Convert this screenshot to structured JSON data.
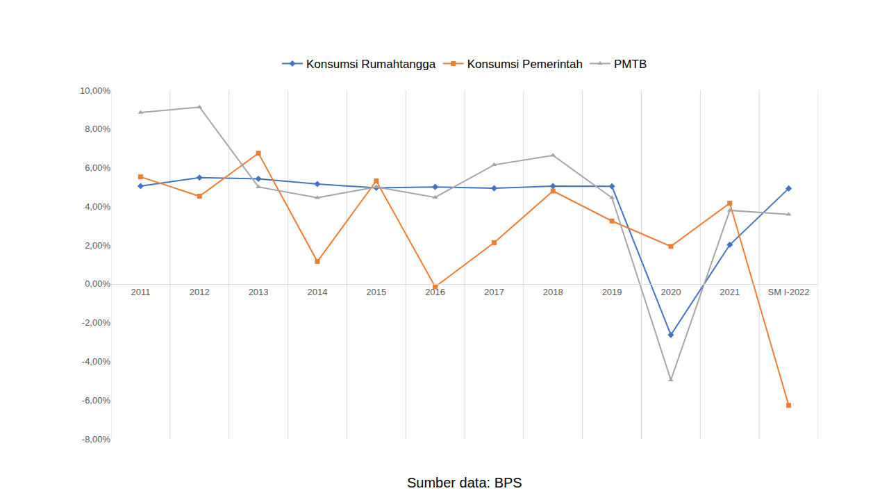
{
  "chart_data": {
    "type": "line",
    "categories": [
      "2011",
      "2012",
      "2013",
      "2014",
      "2015",
      "2016",
      "2017",
      "2018",
      "2019",
      "2020",
      "2021",
      "SM I-2022"
    ],
    "series": [
      {
        "name": "Konsumsi Rumahtangga",
        "color": "#4472c4",
        "marker": "diamond",
        "values": [
          5.05,
          5.49,
          5.43,
          5.16,
          4.96,
          5.01,
          4.94,
          5.05,
          5.04,
          -2.63,
          2.02,
          4.93
        ]
      },
      {
        "name": "Konsumsi Pemerintah",
        "color": "#ed7d31",
        "marker": "square",
        "values": [
          5.53,
          4.53,
          6.75,
          1.16,
          5.32,
          -0.15,
          2.13,
          4.8,
          3.25,
          1.94,
          4.17,
          -6.27
        ]
      },
      {
        "name": "PMTB",
        "color": "#a5a5a5",
        "marker": "triangle-up",
        "values": [
          8.85,
          9.13,
          5.01,
          4.45,
          5.01,
          4.47,
          6.15,
          6.64,
          4.45,
          -4.96,
          3.8,
          3.59
        ]
      }
    ],
    "ylim": [
      -8,
      10
    ],
    "yticks": [
      {
        "value": -8,
        "label": "-8,00%"
      },
      {
        "value": -6,
        "label": "-6,00%"
      },
      {
        "value": -4,
        "label": "-4,00%"
      },
      {
        "value": -2,
        "label": "-2,00%"
      },
      {
        "value": 0,
        "label": "0,00%"
      },
      {
        "value": 2,
        "label": "2,00%"
      },
      {
        "value": 4,
        "label": "4,00%"
      },
      {
        "value": 6,
        "label": "6,00%"
      },
      {
        "value": 8,
        "label": "8,00%"
      },
      {
        "value": 10,
        "label": "10,00%"
      }
    ],
    "grid": true,
    "legend": "top",
    "annotations": [
      "Sumber data: BPS"
    ]
  }
}
